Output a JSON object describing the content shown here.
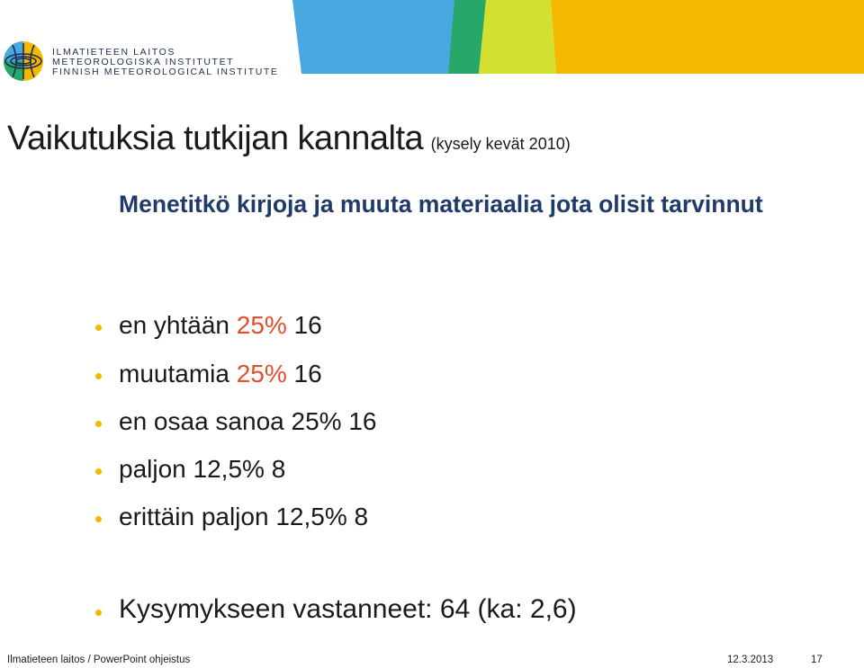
{
  "header": {
    "org_lines": [
      "ILMATIETEEN LAITOS",
      "METEOROLOGISKA INSTITUTET",
      "FINNISH METEOROLOGICAL INSTITUTE"
    ],
    "banner_colors": [
      "#4aa8e0",
      "#27a868",
      "#d4e030",
      "#f5b800"
    ]
  },
  "slide": {
    "title": "Vaikutuksia tutkijan kannalta",
    "title_note": "(kysely kevät 2010)",
    "question": "Menetitkö kirjoja ja muuta materiaalia jota olisit tarvinnut",
    "bullets": [
      {
        "text": "en yhtään",
        "pct": "25%",
        "count": "16",
        "pct_highlight": true
      },
      {
        "text": "muutamia",
        "pct": "25%",
        "count": "16",
        "pct_highlight": true
      },
      {
        "text": "en osaa sanoa",
        "pct": "25%",
        "count": "16",
        "pct_highlight": false
      },
      {
        "text": "paljon",
        "pct": "12,5%",
        "count": "8",
        "pct_highlight": false
      },
      {
        "text": "erittäin paljon",
        "pct": "12,5%",
        "count": "8",
        "pct_highlight": false
      }
    ],
    "summary": "Kysymykseen vastanneet: 64 (ka: 2,6)"
  },
  "footer": {
    "left": "Ilmatieteen laitos / PowerPoint ohjeistus",
    "date": "12.3.2013",
    "page": "17"
  },
  "colors": {
    "bullet": "#f5b800",
    "highlight": "#e0502a",
    "question": "#203a6a"
  }
}
